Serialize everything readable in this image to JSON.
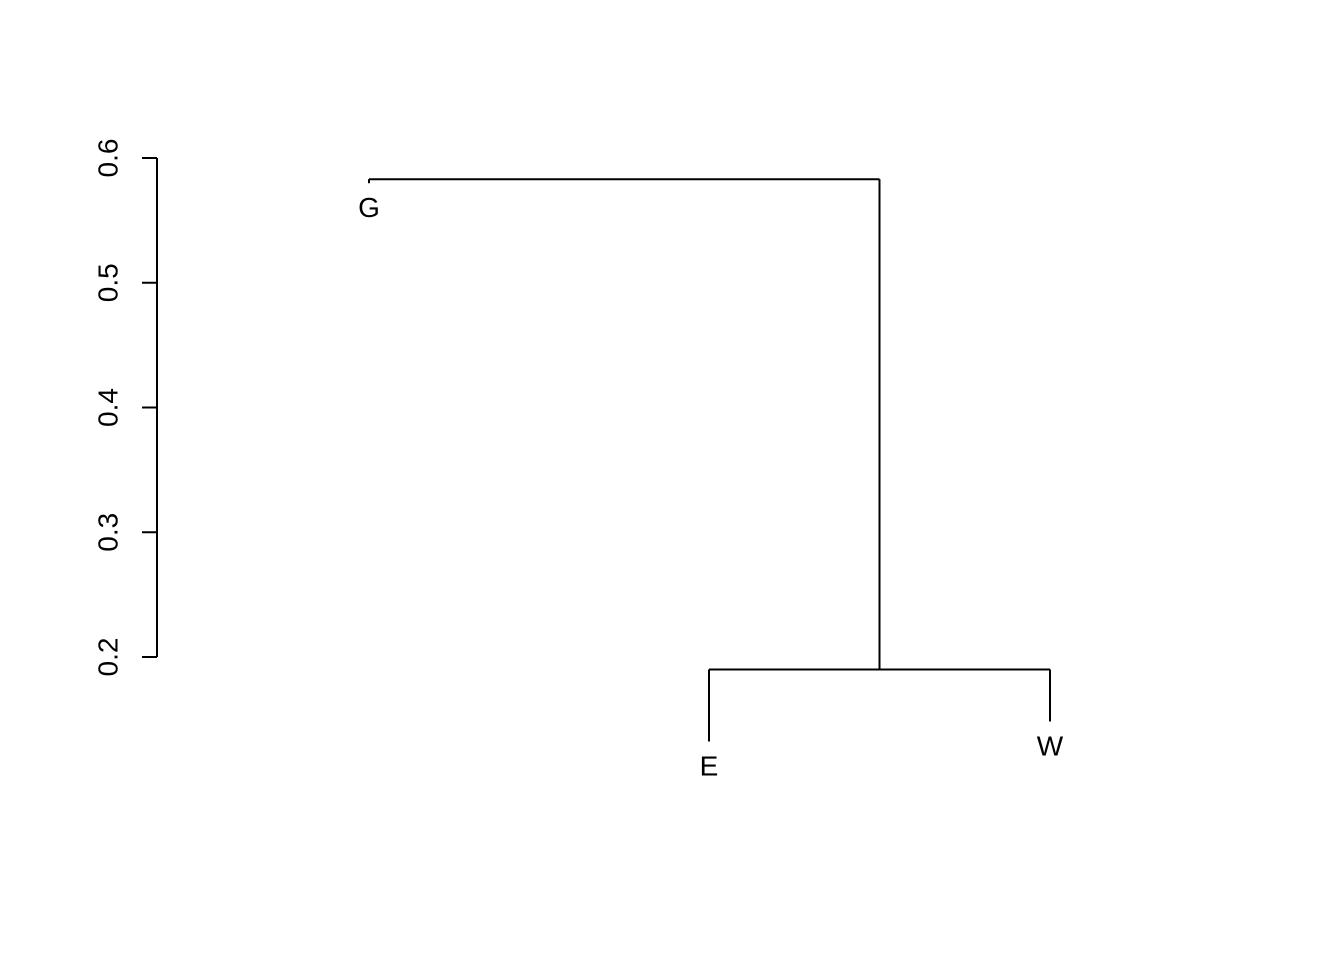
{
  "chart_data": {
    "type": "dendrogram",
    "title": "",
    "xlabel": "",
    "ylabel": "",
    "ylim": [
      0.2,
      0.6
    ],
    "yticks": [
      0.2,
      0.3,
      0.4,
      0.5,
      0.6
    ],
    "ytick_labels": [
      "0.2",
      "0.3",
      "0.4",
      "0.5",
      "0.6"
    ],
    "leaves": [
      "G",
      "E",
      "W"
    ],
    "merges": [
      {
        "left": "E",
        "right": "W",
        "height": 0.19
      },
      {
        "left": "G",
        "right": "E+W",
        "height": 0.583
      }
    ],
    "grid": false,
    "line_color": "#000000"
  }
}
